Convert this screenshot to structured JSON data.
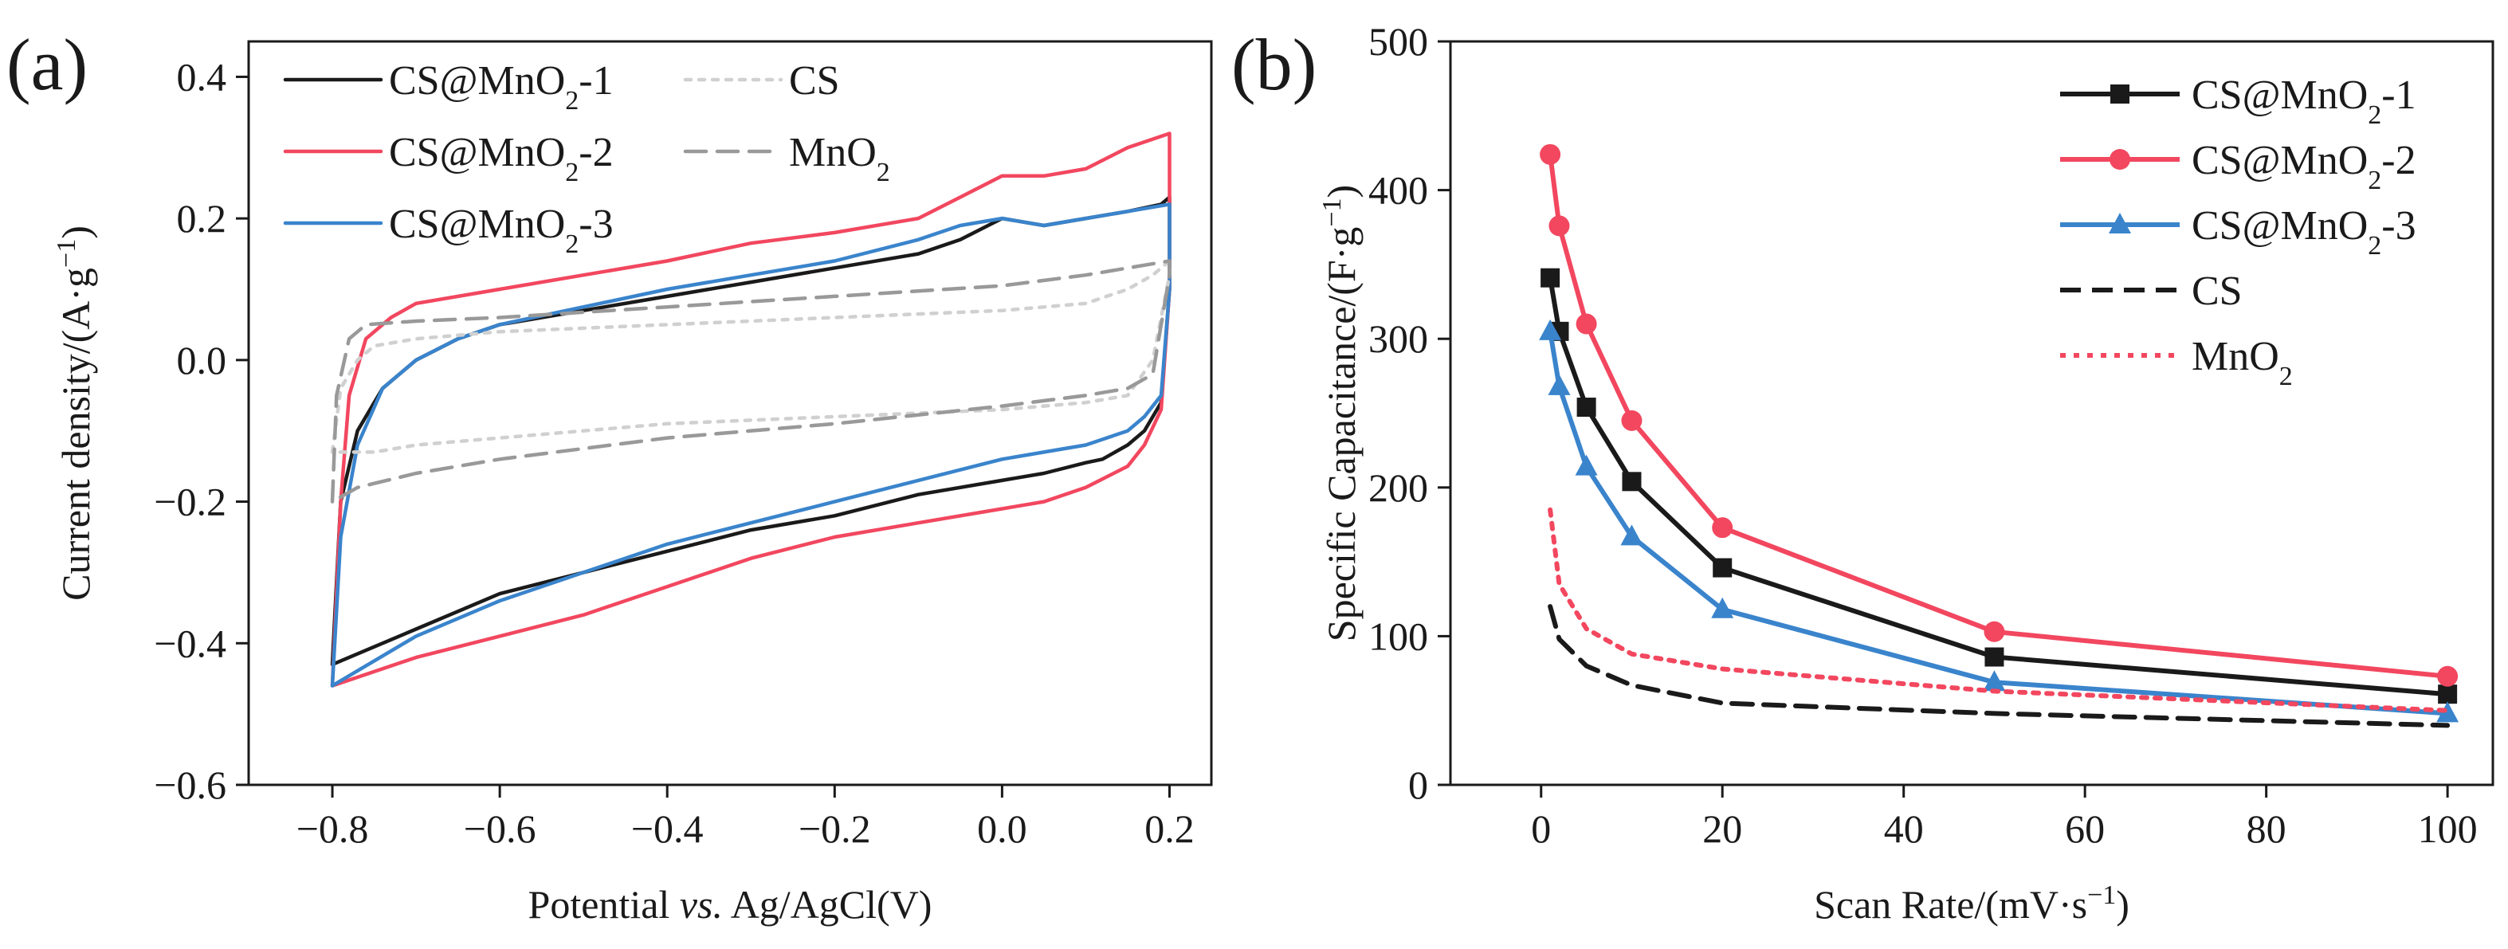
{
  "colors": {
    "black": "#1a1a1a",
    "red": "#f2475f",
    "blue": "#3a84cc",
    "light_gray": "#d0d0d0",
    "gray": "#999999",
    "cs_dash": "#1a1a1a",
    "mno2_dot": "#f2475f"
  },
  "chart_data": [
    {
      "panel_label": "(a)",
      "type": "line",
      "title": "",
      "xlabel_prefix": "Potential ",
      "xlabel_italic": "vs.",
      "xlabel_suffix": " Ag/AgCl(V)",
      "ylabel": "Current density/(A·g",
      "ylabel_sup": "−1",
      "ylabel_end": ")",
      "xlim": [
        -0.9,
        0.25
      ],
      "ylim": [
        -0.6,
        0.45
      ],
      "xticks": [
        -0.8,
        -0.6,
        -0.4,
        -0.2,
        0.0,
        0.2
      ],
      "xtick_labels": [
        "−0.8",
        "−0.6",
        "−0.4",
        "−0.2",
        "0.0",
        "0.2"
      ],
      "yticks": [
        -0.6,
        -0.4,
        -0.2,
        0.0,
        0.2,
        0.4
      ],
      "ytick_labels": [
        "−0.6",
        "−0.4",
        "−0.2",
        "0.0",
        "0.2",
        "0.4"
      ],
      "legend_position": "top-left",
      "series": [
        {
          "name": "CS@MnO2-1",
          "label_base": "CS@MnO",
          "label_sub": "2",
          "label_suffix": "-1",
          "color": "#1a1a1a",
          "style": "solid",
          "x": [
            -0.8,
            -0.79,
            -0.77,
            -0.74,
            -0.7,
            -0.65,
            -0.6,
            -0.5,
            -0.4,
            -0.3,
            -0.2,
            -0.1,
            -0.05,
            0.0,
            0.05,
            0.1,
            0.15,
            0.19,
            0.2,
            0.2,
            0.19,
            0.17,
            0.15,
            0.12,
            0.1,
            0.05,
            0.0,
            -0.1,
            -0.2,
            -0.3,
            -0.4,
            -0.5,
            -0.6,
            -0.7,
            -0.8,
            -0.8
          ],
          "y": [
            -0.43,
            -0.2,
            -0.1,
            -0.04,
            0.0,
            0.03,
            0.05,
            0.07,
            0.09,
            0.11,
            0.13,
            0.15,
            0.17,
            0.2,
            0.19,
            0.2,
            0.21,
            0.22,
            0.23,
            0.1,
            -0.06,
            -0.1,
            -0.12,
            -0.14,
            -0.145,
            -0.16,
            -0.17,
            -0.19,
            -0.22,
            -0.24,
            -0.27,
            -0.3,
            -0.33,
            -0.38,
            -0.43,
            -0.43
          ]
        },
        {
          "name": "CS@MnO2-2",
          "label_base": "CS@MnO",
          "label_sub": "2",
          "label_suffix": "-2",
          "color": "#f2475f",
          "style": "solid",
          "x": [
            -0.8,
            -0.79,
            -0.78,
            -0.76,
            -0.73,
            -0.7,
            -0.6,
            -0.5,
            -0.4,
            -0.3,
            -0.2,
            -0.1,
            -0.05,
            0.0,
            0.05,
            0.1,
            0.15,
            0.2,
            0.2,
            0.19,
            0.17,
            0.15,
            0.1,
            0.05,
            0.0,
            -0.1,
            -0.2,
            -0.3,
            -0.4,
            -0.5,
            -0.6,
            -0.7,
            -0.8
          ],
          "y": [
            -0.46,
            -0.2,
            -0.05,
            0.03,
            0.06,
            0.08,
            0.1,
            0.12,
            0.14,
            0.165,
            0.18,
            0.2,
            0.23,
            0.26,
            0.26,
            0.27,
            0.3,
            0.32,
            0.1,
            -0.07,
            -0.12,
            -0.15,
            -0.18,
            -0.2,
            -0.21,
            -0.23,
            -0.25,
            -0.28,
            -0.32,
            -0.36,
            -0.39,
            -0.42,
            -0.46
          ]
        },
        {
          "name": "CS@MnO2-3",
          "label_base": "CS@MnO",
          "label_sub": "2",
          "label_suffix": "-3",
          "color": "#3a84cc",
          "style": "solid",
          "x": [
            -0.8,
            -0.79,
            -0.77,
            -0.74,
            -0.7,
            -0.65,
            -0.6,
            -0.5,
            -0.4,
            -0.3,
            -0.2,
            -0.1,
            -0.05,
            0.0,
            0.05,
            0.1,
            0.15,
            0.2,
            0.2,
            0.19,
            0.17,
            0.15,
            0.1,
            0.05,
            0.0,
            -0.1,
            -0.2,
            -0.3,
            -0.4,
            -0.5,
            -0.6,
            -0.7,
            -0.8
          ],
          "y": [
            -0.46,
            -0.25,
            -0.12,
            -0.04,
            0.0,
            0.03,
            0.05,
            0.075,
            0.1,
            0.12,
            0.14,
            0.17,
            0.19,
            0.2,
            0.19,
            0.2,
            0.21,
            0.22,
            0.1,
            -0.05,
            -0.08,
            -0.1,
            -0.12,
            -0.13,
            -0.14,
            -0.17,
            -0.2,
            -0.23,
            -0.26,
            -0.3,
            -0.34,
            -0.39,
            -0.46
          ]
        },
        {
          "name": "CS",
          "label_base": "CS",
          "label_sub": "",
          "label_suffix": "",
          "color": "#d0d0d0",
          "style": "dotted",
          "x": [
            -0.8,
            -0.79,
            -0.77,
            -0.75,
            -0.7,
            -0.6,
            -0.4,
            -0.2,
            0.0,
            0.1,
            0.15,
            0.18,
            0.2,
            0.2,
            0.18,
            0.15,
            0.1,
            0.0,
            -0.2,
            -0.4,
            -0.6,
            -0.7,
            -0.75,
            -0.8
          ],
          "y": [
            -0.13,
            -0.04,
            0.0,
            0.02,
            0.03,
            0.04,
            0.05,
            0.06,
            0.07,
            0.08,
            0.1,
            0.12,
            0.14,
            0.12,
            0.0,
            -0.05,
            -0.06,
            -0.07,
            -0.08,
            -0.09,
            -0.11,
            -0.12,
            -0.13,
            -0.13
          ]
        },
        {
          "name": "MnO2",
          "label_base": "MnO",
          "label_sub": "2",
          "label_suffix": "",
          "color": "#999999",
          "style": "dashed",
          "x": [
            -0.8,
            -0.795,
            -0.78,
            -0.76,
            -0.7,
            -0.6,
            -0.4,
            -0.2,
            0.0,
            0.1,
            0.2,
            0.2,
            0.18,
            0.15,
            0.1,
            0.0,
            -0.2,
            -0.4,
            -0.6,
            -0.7,
            -0.77,
            -0.8
          ],
          "y": [
            -0.2,
            -0.05,
            0.03,
            0.05,
            0.055,
            0.06,
            0.075,
            0.09,
            0.105,
            0.12,
            0.14,
            0.12,
            -0.02,
            -0.04,
            -0.05,
            -0.065,
            -0.09,
            -0.11,
            -0.14,
            -0.16,
            -0.18,
            -0.2
          ]
        }
      ]
    },
    {
      "panel_label": "(b)",
      "type": "line",
      "title": "",
      "xlabel": "Scan Rate/(mV·s",
      "xlabel_sup": "−1",
      "xlabel_end": ")",
      "ylabel": "Specific Capacitance/(F·g",
      "ylabel_sup": "−1",
      "ylabel_end": ")",
      "xlim": [
        -10,
        105
      ],
      "ylim": [
        0,
        500
      ],
      "xticks": [
        0,
        20,
        40,
        60,
        80,
        100
      ],
      "xtick_labels": [
        "0",
        "20",
        "40",
        "60",
        "80",
        "100"
      ],
      "yticks": [
        0,
        100,
        200,
        300,
        400,
        500
      ],
      "ytick_labels": [
        "0",
        "100",
        "200",
        "300",
        "400",
        "500"
      ],
      "legend_position": "top-right",
      "series": [
        {
          "name": "CS@MnO2-1",
          "label_base": "CS@MnO",
          "label_sub": "2",
          "label_suffix": "-1",
          "color": "#1a1a1a",
          "style": "solid",
          "marker": "square",
          "x": [
            1,
            2,
            5,
            10,
            20,
            50,
            100
          ],
          "y": [
            341,
            305,
            254,
            204,
            146,
            86,
            61
          ]
        },
        {
          "name": "CS@MnO2-2",
          "label_base": "CS@MnO",
          "label_sub": "2",
          "label_suffix": "-2",
          "color": "#f2475f",
          "style": "solid",
          "marker": "circle",
          "x": [
            1,
            2,
            5,
            10,
            20,
            50,
            100
          ],
          "y": [
            424,
            376,
            310,
            245,
            173,
            103,
            73
          ]
        },
        {
          "name": "CS@MnO2-3",
          "label_base": "CS@MnO",
          "label_sub": "2",
          "label_suffix": "-3",
          "color": "#3a84cc",
          "style": "solid",
          "marker": "triangle",
          "x": [
            1,
            2,
            5,
            10,
            20,
            50,
            100
          ],
          "y": [
            305,
            268,
            214,
            167,
            118,
            69,
            48
          ]
        },
        {
          "name": "CS",
          "label_base": "CS",
          "label_sub": "",
          "label_suffix": "",
          "color": "#1a1a1a",
          "style": "dashed",
          "marker": "none",
          "x": [
            1,
            2,
            5,
            10,
            20,
            50,
            100
          ],
          "y": [
            120,
            98,
            80,
            67,
            55,
            48,
            40
          ]
        },
        {
          "name": "MnO2",
          "label_base": "MnO",
          "label_sub": "2",
          "label_suffix": "",
          "color": "#f2475f",
          "style": "dotted",
          "marker": "none",
          "x": [
            1,
            2,
            5,
            10,
            20,
            50,
            100
          ],
          "y": [
            185,
            135,
            105,
            88,
            78,
            63,
            50
          ]
        }
      ]
    }
  ]
}
